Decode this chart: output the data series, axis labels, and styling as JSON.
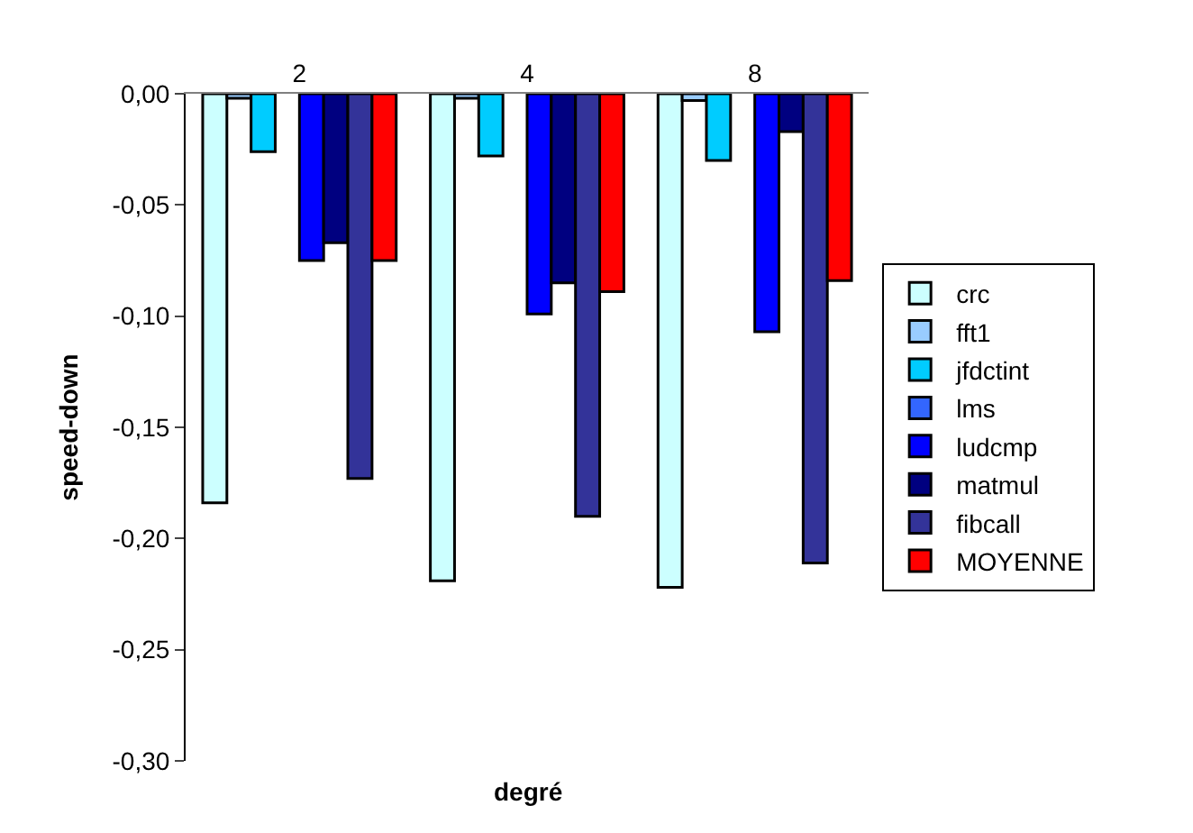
{
  "chart_data": {
    "type": "bar",
    "xlabel": "degré",
    "ylabel": "speed-down",
    "categories": [
      "2",
      "4",
      "8"
    ],
    "series": [
      {
        "name": "crc",
        "color": "#ccffff",
        "values": [
          -0.184,
          -0.219,
          -0.222
        ]
      },
      {
        "name": "fft1",
        "color": "#99ccff",
        "values": [
          -0.002,
          -0.002,
          -0.003
        ]
      },
      {
        "name": "jfdctint",
        "color": "#00ccff",
        "values": [
          -0.026,
          -0.028,
          -0.03
        ]
      },
      {
        "name": "lms",
        "color": "#3366ff",
        "values": [
          null,
          null,
          null
        ]
      },
      {
        "name": "ludcmp",
        "color": "#0000ff",
        "values": [
          -0.075,
          -0.099,
          -0.107
        ]
      },
      {
        "name": "matmul",
        "color": "#000080",
        "values": [
          -0.067,
          -0.085,
          -0.017
        ]
      },
      {
        "name": "fibcall",
        "color": "#333399",
        "values": [
          -0.173,
          -0.19,
          -0.211
        ]
      },
      {
        "name": "MOYENNE",
        "color": "#ff0000",
        "values": [
          -0.075,
          -0.089,
          -0.084
        ]
      }
    ],
    "ylim": [
      -0.3,
      0
    ],
    "yticks": [
      {
        "value": 0,
        "label": "0,00"
      },
      {
        "value": -0.05,
        "label": "-0,05"
      },
      {
        "value": -0.1,
        "label": "-0,10"
      },
      {
        "value": -0.15,
        "label": "-0,15"
      },
      {
        "value": -0.2,
        "label": "-0,20"
      },
      {
        "value": -0.25,
        "label": "-0,25"
      },
      {
        "value": -0.3,
        "label": "-0,30"
      }
    ],
    "grid": false,
    "legend": "right"
  }
}
